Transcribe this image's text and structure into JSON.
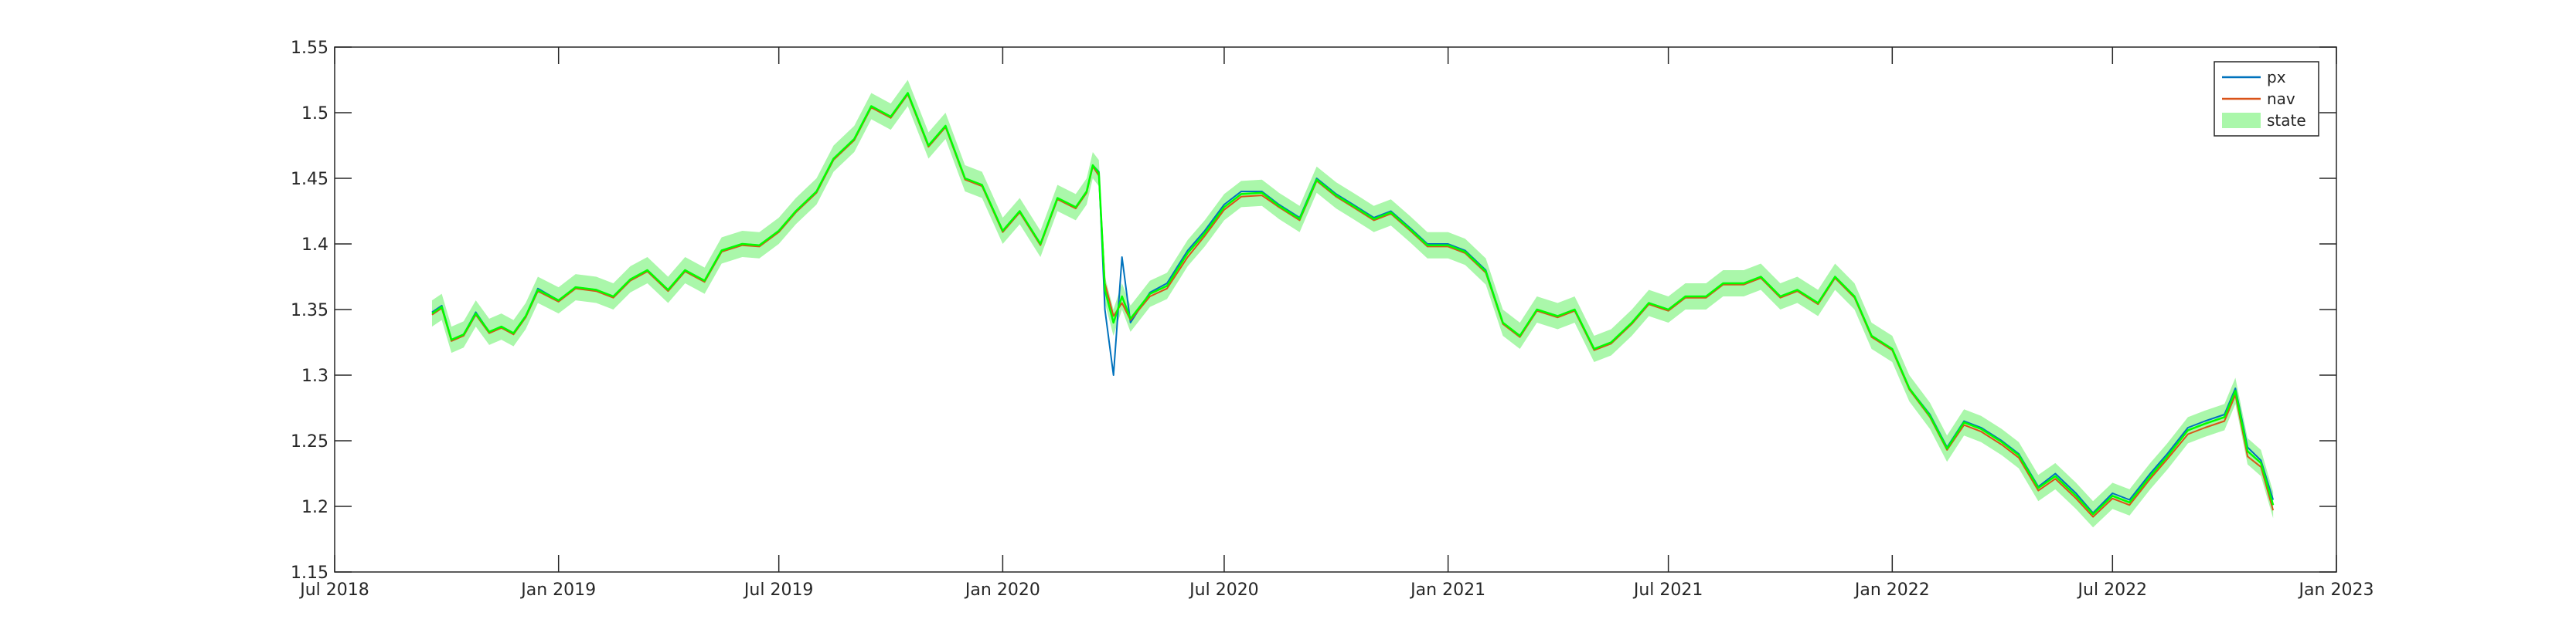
{
  "chart_data": {
    "type": "line",
    "title": "",
    "xlabel": "",
    "ylabel": "",
    "grid": false,
    "legend_placement": "top-right",
    "xlim": [
      "2018-07-01",
      "2023-01-01"
    ],
    "ylim": [
      1.15,
      1.55
    ],
    "x_ticks": [
      "2018-07-01",
      "2019-01-01",
      "2019-07-01",
      "2020-01-01",
      "2020-07-01",
      "2021-01-01",
      "2021-07-01",
      "2022-01-01",
      "2022-07-01",
      "2023-01-01"
    ],
    "x_tick_labels": [
      "Jul 2018",
      "Jan 2019",
      "Jul 2019",
      "Jan 2020",
      "Jul 2020",
      "Jan 2021",
      "Jul 2021",
      "Jan 2022",
      "Jul 2022",
      "Jan 2023"
    ],
    "y_ticks": [
      1.15,
      1.2,
      1.25,
      1.3,
      1.35,
      1.4,
      1.45,
      1.5,
      1.55
    ],
    "y_tick_labels": [
      "1.15",
      "1.2",
      "1.25",
      "1.3",
      "1.35",
      "1.4",
      "1.45",
      "1.5",
      "1.55"
    ],
    "legend": [
      {
        "label": "px",
        "color": "#0072BD",
        "kind": "line"
      },
      {
        "label": "nav",
        "color": "#D95319",
        "kind": "line"
      },
      {
        "label": "state",
        "color": "#AAF7AA",
        "kind": "patch"
      }
    ],
    "state_band_halfwidth": 0.01,
    "x": [
      "2018-09-19",
      "2018-09-27",
      "2018-10-05",
      "2018-10-15",
      "2018-10-25",
      "2018-11-05",
      "2018-11-15",
      "2018-11-25",
      "2018-12-05",
      "2018-12-15",
      "2019-01-01",
      "2019-01-15",
      "2019-02-01",
      "2019-02-15",
      "2019-03-01",
      "2019-03-15",
      "2019-04-01",
      "2019-04-15",
      "2019-05-01",
      "2019-05-15",
      "2019-06-01",
      "2019-06-15",
      "2019-07-01",
      "2019-07-15",
      "2019-08-01",
      "2019-08-15",
      "2019-09-01",
      "2019-09-15",
      "2019-10-01",
      "2019-10-15",
      "2019-11-01",
      "2019-11-15",
      "2019-12-01",
      "2019-12-15",
      "2020-01-01",
      "2020-01-15",
      "2020-02-01",
      "2020-02-15",
      "2020-03-01",
      "2020-03-10",
      "2020-03-15",
      "2020-03-20",
      "2020-03-25",
      "2020-04-01",
      "2020-04-08",
      "2020-04-15",
      "2020-05-01",
      "2020-05-15",
      "2020-06-01",
      "2020-06-15",
      "2020-07-01",
      "2020-07-15",
      "2020-08-01",
      "2020-08-15",
      "2020-09-01",
      "2020-09-15",
      "2020-10-01",
      "2020-10-15",
      "2020-11-01",
      "2020-11-15",
      "2020-12-01",
      "2020-12-15",
      "2021-01-01",
      "2021-01-15",
      "2021-02-01",
      "2021-02-15",
      "2021-03-01",
      "2021-03-15",
      "2021-04-01",
      "2021-04-15",
      "2021-05-01",
      "2021-05-15",
      "2021-06-01",
      "2021-06-15",
      "2021-07-01",
      "2021-07-15",
      "2021-08-01",
      "2021-08-15",
      "2021-09-01",
      "2021-09-15",
      "2021-10-01",
      "2021-10-15",
      "2021-11-01",
      "2021-11-15",
      "2021-12-01",
      "2021-12-15",
      "2022-01-01",
      "2022-01-15",
      "2022-02-01",
      "2022-02-15",
      "2022-03-01",
      "2022-03-15",
      "2022-04-01",
      "2022-04-15",
      "2022-05-01",
      "2022-05-15",
      "2022-06-01",
      "2022-06-15",
      "2022-07-01",
      "2022-07-15",
      "2022-08-01",
      "2022-08-15",
      "2022-09-01",
      "2022-09-15",
      "2022-10-01",
      "2022-10-10",
      "2022-10-20",
      "2022-10-31",
      "2022-11-10"
    ],
    "series": [
      {
        "name": "px",
        "color": "#0072BD",
        "values": [
          1.348,
          1.353,
          1.327,
          1.331,
          1.348,
          1.333,
          1.337,
          1.332,
          1.345,
          1.366,
          1.357,
          1.367,
          1.365,
          1.36,
          1.373,
          1.38,
          1.365,
          1.38,
          1.372,
          1.395,
          1.4,
          1.399,
          1.41,
          1.425,
          1.44,
          1.465,
          1.48,
          1.505,
          1.497,
          1.515,
          1.475,
          1.49,
          1.45,
          1.445,
          1.41,
          1.425,
          1.4,
          1.435,
          1.428,
          1.44,
          1.46,
          1.455,
          1.35,
          1.3,
          1.39,
          1.34,
          1.363,
          1.37,
          1.395,
          1.41,
          1.43,
          1.44,
          1.44,
          1.43,
          1.42,
          1.45,
          1.438,
          1.43,
          1.42,
          1.425,
          1.412,
          1.4,
          1.4,
          1.395,
          1.38,
          1.34,
          1.33,
          1.35,
          1.345,
          1.35,
          1.32,
          1.325,
          1.34,
          1.355,
          1.35,
          1.36,
          1.36,
          1.37,
          1.37,
          1.375,
          1.36,
          1.365,
          1.355,
          1.375,
          1.36,
          1.33,
          1.32,
          1.29,
          1.27,
          1.245,
          1.265,
          1.26,
          1.25,
          1.24,
          1.215,
          1.225,
          1.21,
          1.195,
          1.21,
          1.205,
          1.225,
          1.24,
          1.26,
          1.265,
          1.27,
          1.29,
          1.245,
          1.235,
          1.205
        ]
      },
      {
        "name": "nav",
        "color": "#D95319",
        "values": [
          1.346,
          1.351,
          1.326,
          1.33,
          1.346,
          1.332,
          1.336,
          1.331,
          1.344,
          1.364,
          1.356,
          1.366,
          1.364,
          1.359,
          1.372,
          1.379,
          1.364,
          1.379,
          1.371,
          1.394,
          1.399,
          1.398,
          1.409,
          1.424,
          1.439,
          1.464,
          1.479,
          1.504,
          1.496,
          1.514,
          1.474,
          1.489,
          1.449,
          1.444,
          1.409,
          1.424,
          1.399,
          1.434,
          1.427,
          1.439,
          1.459,
          1.452,
          1.37,
          1.345,
          1.355,
          1.342,
          1.36,
          1.366,
          1.39,
          1.406,
          1.426,
          1.436,
          1.437,
          1.428,
          1.418,
          1.448,
          1.436,
          1.428,
          1.418,
          1.423,
          1.41,
          1.398,
          1.398,
          1.393,
          1.378,
          1.339,
          1.329,
          1.349,
          1.344,
          1.349,
          1.319,
          1.324,
          1.339,
          1.354,
          1.349,
          1.359,
          1.359,
          1.369,
          1.369,
          1.374,
          1.359,
          1.364,
          1.354,
          1.374,
          1.359,
          1.329,
          1.319,
          1.289,
          1.268,
          1.243,
          1.262,
          1.257,
          1.247,
          1.237,
          1.212,
          1.221,
          1.206,
          1.192,
          1.206,
          1.201,
          1.221,
          1.236,
          1.255,
          1.26,
          1.265,
          1.285,
          1.238,
          1.23,
          1.197
        ]
      },
      {
        "name": "state",
        "color": "#00FF00",
        "values": [
          1.347,
          1.352,
          1.327,
          1.331,
          1.347,
          1.333,
          1.337,
          1.332,
          1.345,
          1.365,
          1.357,
          1.367,
          1.365,
          1.36,
          1.373,
          1.38,
          1.365,
          1.38,
          1.372,
          1.395,
          1.4,
          1.399,
          1.41,
          1.425,
          1.44,
          1.465,
          1.48,
          1.505,
          1.497,
          1.515,
          1.475,
          1.49,
          1.45,
          1.445,
          1.41,
          1.425,
          1.4,
          1.435,
          1.428,
          1.44,
          1.46,
          1.454,
          1.365,
          1.34,
          1.36,
          1.343,
          1.362,
          1.368,
          1.393,
          1.408,
          1.428,
          1.438,
          1.439,
          1.429,
          1.419,
          1.449,
          1.437,
          1.429,
          1.419,
          1.424,
          1.411,
          1.399,
          1.399,
          1.394,
          1.379,
          1.34,
          1.33,
          1.35,
          1.345,
          1.35,
          1.32,
          1.325,
          1.34,
          1.355,
          1.35,
          1.36,
          1.36,
          1.37,
          1.37,
          1.375,
          1.36,
          1.365,
          1.355,
          1.375,
          1.36,
          1.33,
          1.32,
          1.29,
          1.269,
          1.244,
          1.264,
          1.259,
          1.249,
          1.239,
          1.214,
          1.223,
          1.208,
          1.194,
          1.208,
          1.203,
          1.223,
          1.238,
          1.258,
          1.263,
          1.268,
          1.288,
          1.242,
          1.233,
          1.201
        ]
      }
    ]
  }
}
